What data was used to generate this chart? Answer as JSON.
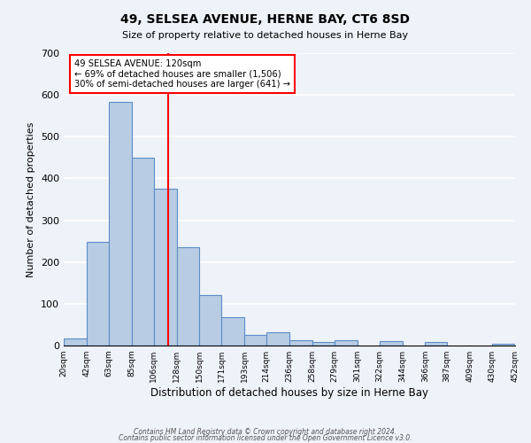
{
  "title": "49, SELSEA AVENUE, HERNE BAY, CT6 8SD",
  "subtitle": "Size of property relative to detached houses in Herne Bay",
  "xlabel": "Distribution of detached houses by size in Herne Bay",
  "ylabel": "Number of detached properties",
  "bin_edges": [
    20,
    42,
    63,
    85,
    106,
    128,
    150,
    171,
    193,
    214,
    236,
    258,
    279,
    301,
    322,
    344,
    366,
    387,
    409,
    430,
    452
  ],
  "bar_heights": [
    18,
    248,
    583,
    450,
    375,
    235,
    120,
    68,
    25,
    31,
    13,
    8,
    12,
    0,
    10,
    0,
    8,
    0,
    0,
    5
  ],
  "bar_color": "#b8cce4",
  "bar_edge_color": "#5b8dc8",
  "property_line_x": 120,
  "property_line_color": "red",
  "annotation_line1": "49 SELSEA AVENUE: 120sqm",
  "annotation_line2": "← 69% of detached houses are smaller (1,506)",
  "annotation_line3": "30% of semi-detached houses are larger (641) →",
  "annotation_box_color": "white",
  "annotation_box_edge_color": "red",
  "ylim": [
    0,
    700
  ],
  "yticks": [
    0,
    100,
    200,
    300,
    400,
    500,
    600,
    700
  ],
  "tick_labels": [
    "20sqm",
    "42sqm",
    "63sqm",
    "85sqm",
    "106sqm",
    "128sqm",
    "150sqm",
    "171sqm",
    "193sqm",
    "214sqm",
    "236sqm",
    "258sqm",
    "279sqm",
    "301sqm",
    "322sqm",
    "344sqm",
    "366sqm",
    "387sqm",
    "409sqm",
    "430sqm",
    "452sqm"
  ],
  "footer_line1": "Contains HM Land Registry data © Crown copyright and database right 2024.",
  "footer_line2": "Contains public sector information licensed under the Open Government Licence v3.0.",
  "bg_color": "#eef2f9",
  "grid_color": "white"
}
